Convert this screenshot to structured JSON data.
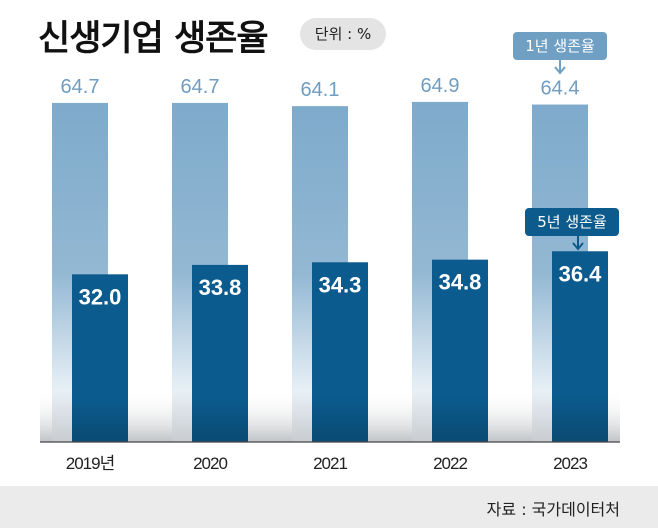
{
  "chart_data": {
    "type": "bar",
    "title": "신생기업 생존율",
    "unit_label": "단위 : %",
    "categories": [
      "2019년",
      "2020",
      "2021",
      "2022",
      "2023"
    ],
    "series": [
      {
        "name": "1년 생존율",
        "values": [
          64.7,
          64.7,
          64.1,
          64.9,
          64.4
        ],
        "color": "#7eaacb"
      },
      {
        "name": "5년 생존율",
        "values": [
          32.0,
          33.8,
          34.3,
          34.8,
          36.4
        ],
        "color": "#0b5b8e"
      }
    ],
    "value_labels": {
      "series1": [
        "64.7",
        "64.7",
        "64.1",
        "64.9",
        "64.4"
      ],
      "series2": [
        "32.0",
        "33.8",
        "34.3",
        "34.8",
        "36.4"
      ]
    },
    "ylim": [
      0,
      70
    ],
    "grid": false,
    "legend": "annotations on last bar",
    "source": "자료 : 국가데이터처"
  }
}
